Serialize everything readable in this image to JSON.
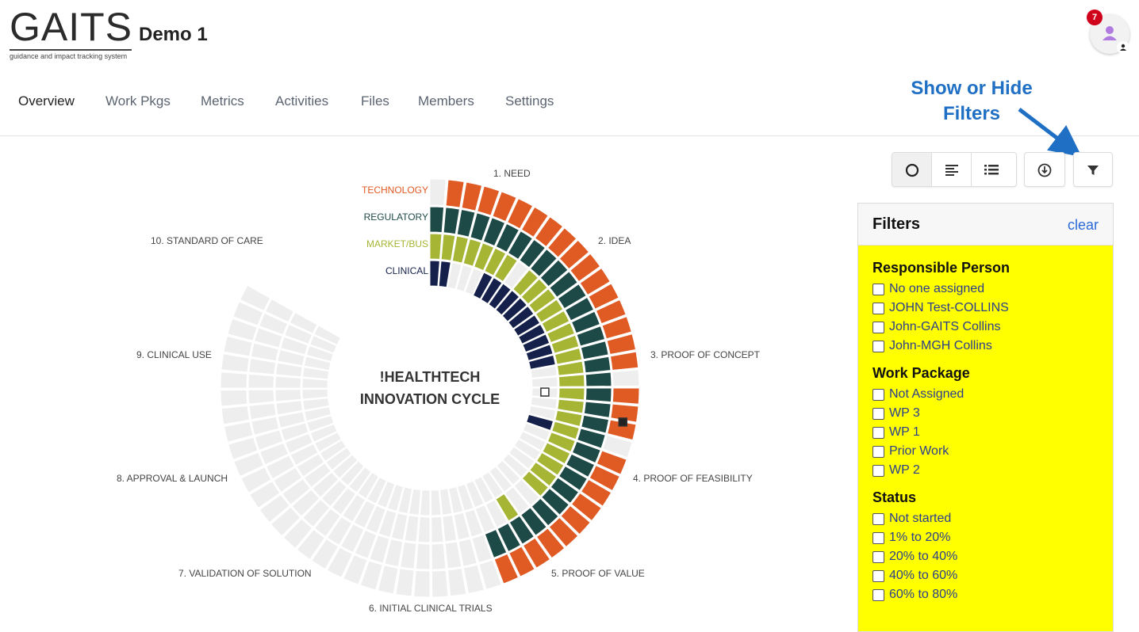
{
  "app": {
    "logo_text": "GAITS",
    "logo_subtitle": "guidance and impact tracking system",
    "project_title": "Demo 1",
    "notification_count": "7"
  },
  "nav": {
    "items": [
      {
        "label": "Overview",
        "active": true
      },
      {
        "label": "Work Pkgs"
      },
      {
        "label": "Metrics"
      },
      {
        "label": "Activities"
      },
      {
        "label": "Files"
      },
      {
        "label": "Members"
      },
      {
        "label": "Settings"
      }
    ]
  },
  "callout": {
    "line1": "Show or Hide",
    "line2": "Filters"
  },
  "toolbar": {
    "view_buttons": [
      "circle-view-icon",
      "bar-view-icon",
      "list-view-icon"
    ],
    "download_icon": "download-icon",
    "filter_icon": "filter-icon"
  },
  "chart": {
    "center_line1": "!HEALTHTECH",
    "center_line2": "INNOVATION CYCLE",
    "tracks": [
      {
        "label": "TECHNOLOGY",
        "color": "#e05a24"
      },
      {
        "label": "REGULATORY",
        "color": "#1d4a47"
      },
      {
        "label": "MARKET/BUS",
        "color": "#a7b534"
      },
      {
        "label": "CLINICAL",
        "color": "#15214a"
      }
    ],
    "stages": [
      "1. NEED",
      "2. IDEA",
      "3. PROOF OF CONCEPT",
      "4. PROOF OF FEASIBILITY",
      "5. PROOF OF VALUE",
      "6. INITIAL CLINICAL TRIALS",
      "7. VALIDATION OF SOLUTION",
      "8. APPROVAL & LAUNCH",
      "9. CLINICAL USE",
      "10. STANDARD OF CARE"
    ]
  },
  "filters": {
    "title": "Filters",
    "clear_label": "clear",
    "sections": [
      {
        "title": "Responsible Person",
        "options": [
          "No one assigned",
          "JOHN Test-COLLINS",
          "John-GAITS Collins",
          "John-MGH Collins"
        ]
      },
      {
        "title": "Work Package",
        "options": [
          "Not Assigned",
          "WP 3",
          "WP 1",
          "Prior Work",
          "WP 2"
        ]
      },
      {
        "title": "Status",
        "options": [
          "Not started",
          "1% to 20%",
          "20% to 40%",
          "40% to 60%",
          "60% to 80%"
        ]
      }
    ]
  }
}
